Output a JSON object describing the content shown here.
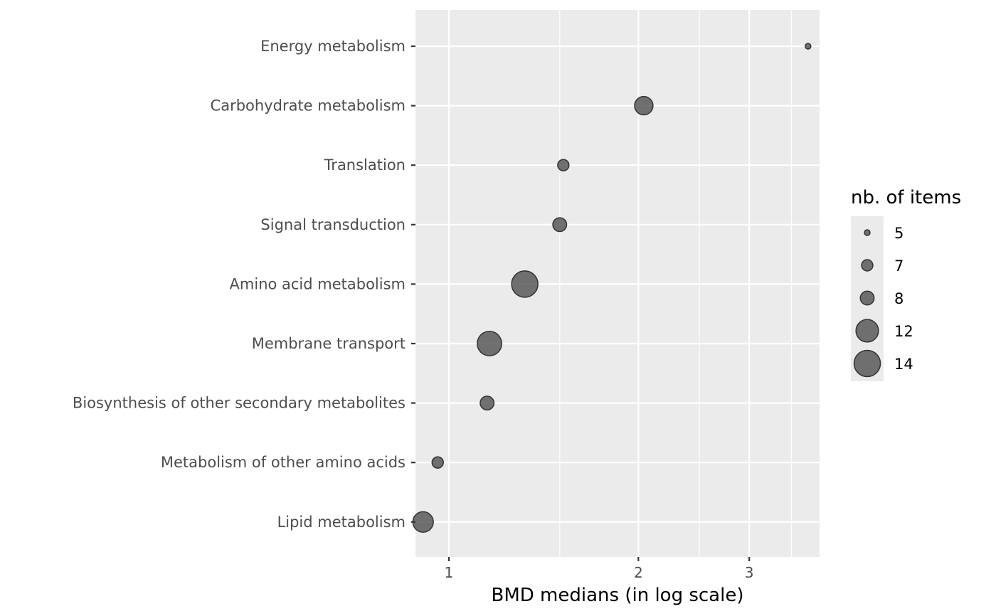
{
  "chart_data": {
    "type": "scatter",
    "xlabel": "BMD medians (in log scale)",
    "ylabel": "",
    "x_scale": "log",
    "xlim": [
      0.885,
      3.88
    ],
    "x_ticks": [
      1,
      2,
      3
    ],
    "x_tick_labels": [
      "1",
      "2",
      "3"
    ],
    "x_minor_ticks": [
      1.5,
      2.5,
      3.5
    ],
    "categories": [
      "Energy metabolism",
      "Carbohydrate metabolism",
      "Translation",
      "Signal transduction",
      "Amino acid metabolism",
      "Membrane transport",
      "Biosynthesis of other secondary metabolites",
      "Metabolism of other amino acids",
      "Lipid metabolism"
    ],
    "points": [
      {
        "category": "Energy metabolism",
        "x": 3.72,
        "size": 5
      },
      {
        "category": "Carbohydrate metabolism",
        "x": 2.04,
        "size": 10
      },
      {
        "category": "Translation",
        "x": 1.52,
        "size": 7
      },
      {
        "category": "Signal transduction",
        "x": 1.5,
        "size": 8
      },
      {
        "category": "Amino acid metabolism",
        "x": 1.32,
        "size": 14
      },
      {
        "category": "Membrane transport",
        "x": 1.16,
        "size": 13
      },
      {
        "category": "Biosynthesis of other secondary metabolites",
        "x": 1.15,
        "size": 8
      },
      {
        "category": "Metabolism of other amino acids",
        "x": 0.96,
        "size": 7
      },
      {
        "category": "Lipid metabolism",
        "x": 0.91,
        "size": 11
      }
    ],
    "size_legend": {
      "title": "nb. of items",
      "values": [
        5,
        7,
        8,
        12,
        14
      ],
      "labels": [
        "5",
        "7",
        "8",
        "12",
        "14"
      ]
    },
    "grid": true,
    "legend_position": "right",
    "colors": {
      "panel": "#ebebeb",
      "gridline": "#ffffff",
      "point_fill": "#595959",
      "point_stroke": "#333333"
    }
  }
}
